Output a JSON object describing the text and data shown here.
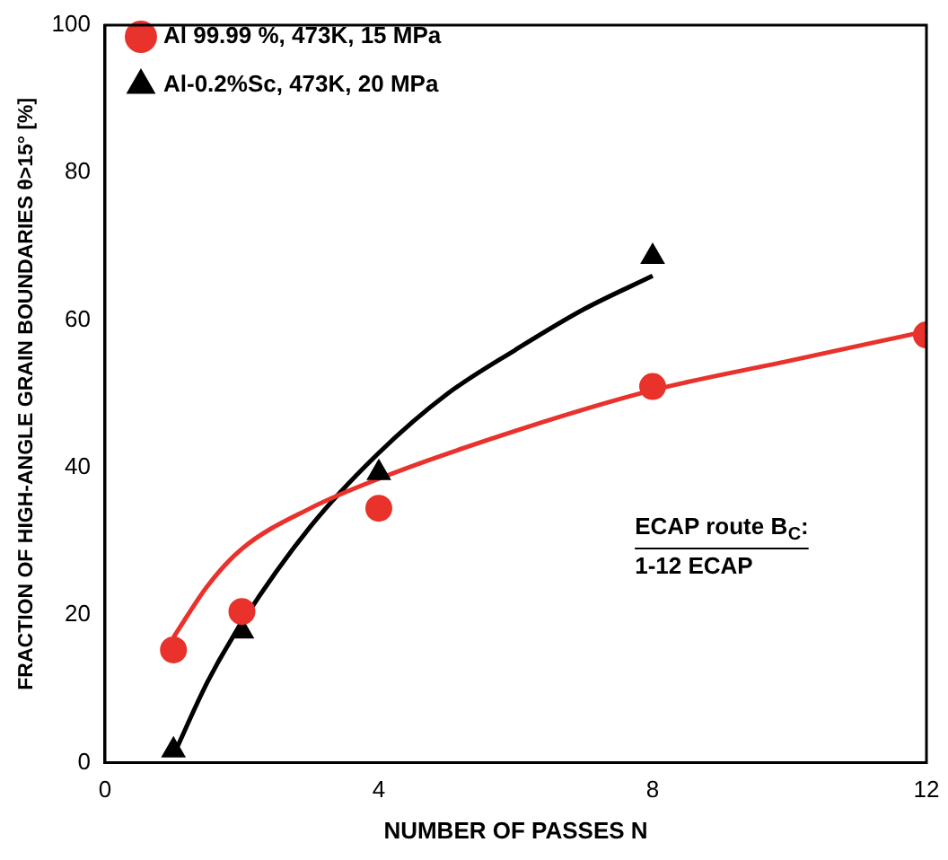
{
  "chart_data": {
    "type": "scatter",
    "xlabel": "NUMBER OF PASSES N",
    "ylabel": "FRACTION OF HIGH-ANGLE GRAIN BOUNDARIES θ>15° [%]",
    "xlim": [
      0,
      12
    ],
    "xticks": [
      0,
      4,
      8,
      12
    ],
    "ylim": [
      0,
      100
    ],
    "yticks": [
      0,
      20,
      40,
      60,
      80,
      100
    ],
    "grid": false,
    "legend": "top left",
    "annotations": [
      "ECAP route B$_{C}$:",
      "1-12 ECAP"
    ],
    "series": [
      {
        "name": "Al 99.99 %, 473K, 15 MPa",
        "color": "#e8322b",
        "marker": "circle",
        "x": [
          1,
          2,
          4,
          8,
          12
        ],
        "values": [
          15.3,
          20.5,
          34.5,
          51,
          58
        ]
      },
      {
        "name": "Al-0.2%Sc, 473K, 20 MPa",
        "color": "#000000",
        "marker": "triangle",
        "x": [
          1,
          2,
          4,
          8
        ],
        "values": [
          1.7,
          17.8,
          39.3,
          68.6
        ]
      },
      {
        "type": "line",
        "color": "#e8322b",
        "marker": "none",
        "x": [
          1,
          1.5,
          2,
          3,
          4,
          6,
          8,
          10,
          12
        ],
        "values": [
          17,
          24,
          29,
          34.5,
          38.5,
          45,
          50.5,
          54.5,
          58.5
        ]
      },
      {
        "type": "line",
        "color": "#000000",
        "marker": "none",
        "x": [
          1,
          1.5,
          2,
          3,
          4,
          5,
          6,
          7,
          8
        ],
        "values": [
          1,
          11,
          19,
          32,
          42,
          50,
          56,
          61.5,
          66
        ]
      }
    ]
  }
}
